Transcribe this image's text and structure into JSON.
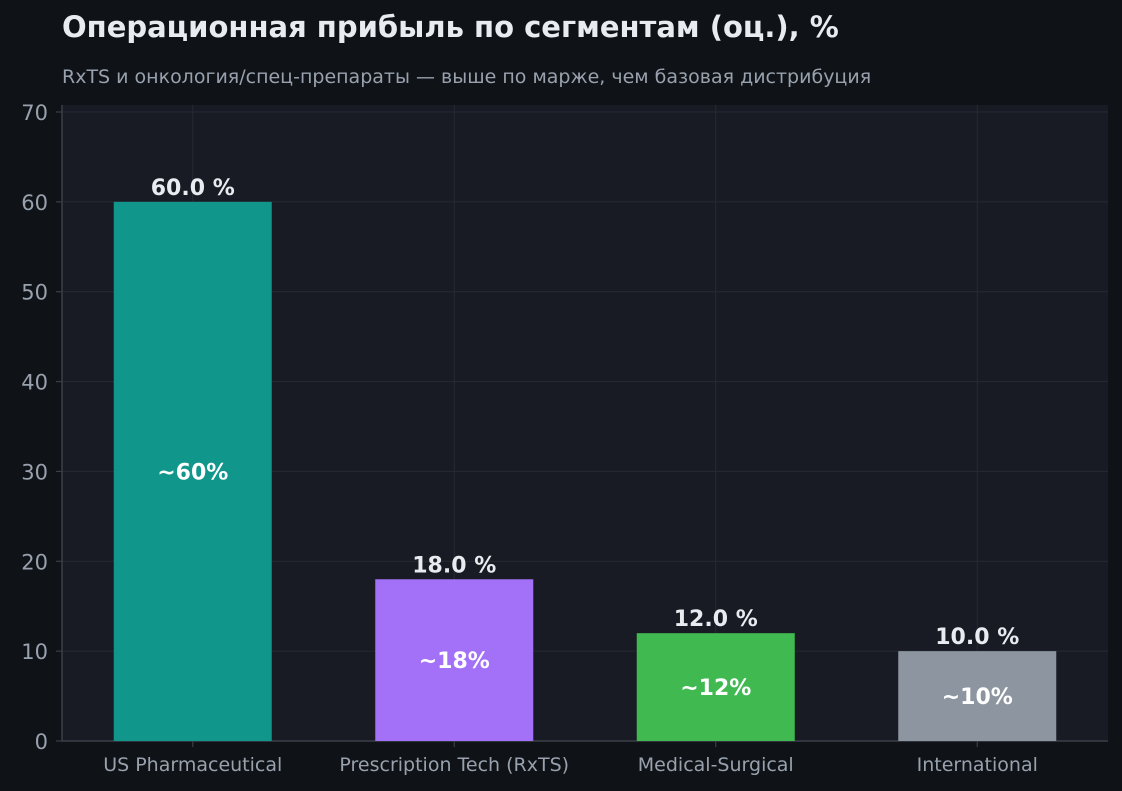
{
  "title": "Операционная прибыль по сегментам (оц.), %",
  "subtitle": "RxTS и онкология/спец-препараты — выше по марже, чем базовая дистрибуция",
  "colors": {
    "background": "#0f1317",
    "plot_background": "#181b23",
    "grid": "#262a33",
    "axis": "#3a3f48"
  },
  "chart_data": {
    "type": "bar",
    "categories": [
      "US Pharmaceutical",
      "Prescription Tech (RxTS)",
      "Medical-Surgical",
      "International"
    ],
    "values": [
      60.0,
      18.0,
      12.0,
      10.0
    ],
    "value_labels": [
      "60.0 %",
      "18.0 %",
      "12.0 %",
      "10.0 %"
    ],
    "inner_labels": [
      "~60%",
      "~18%",
      "~12%",
      "~10%"
    ],
    "bar_colors": [
      "#10968a",
      "#a371f7",
      "#3fb950",
      "#8d96a0"
    ],
    "ylim": [
      0,
      70
    ],
    "yticks": [
      0,
      10,
      20,
      30,
      40,
      50,
      60,
      70
    ],
    "grid": true,
    "xlabel": "",
    "ylabel": ""
  }
}
